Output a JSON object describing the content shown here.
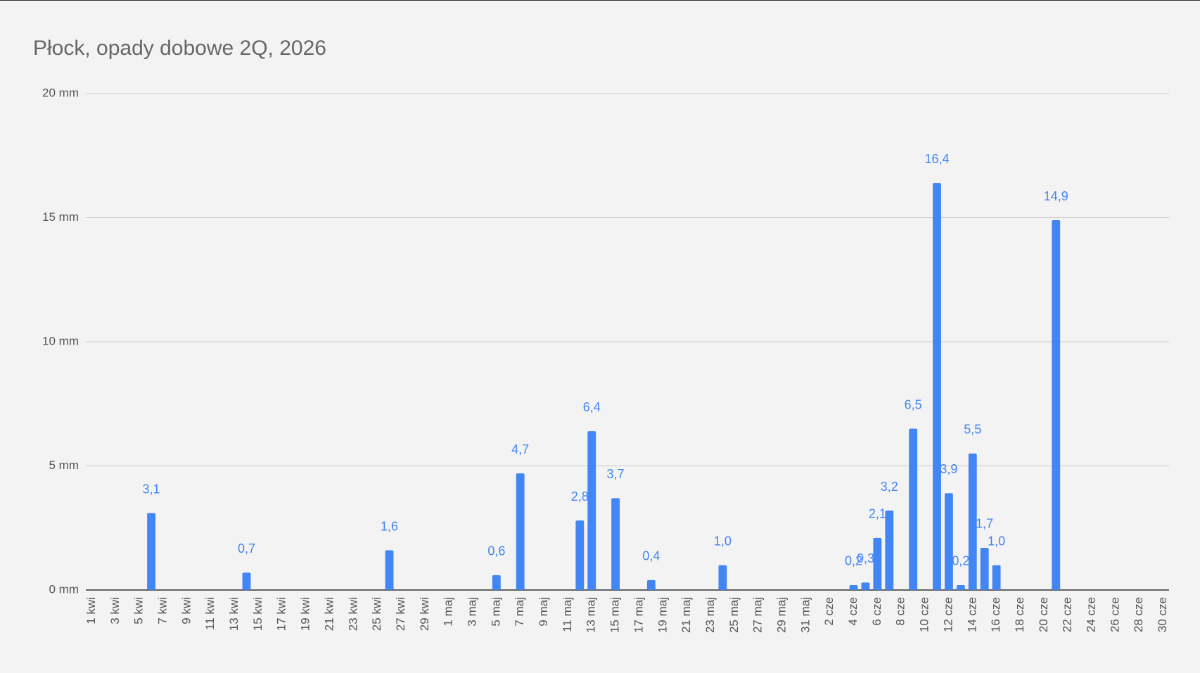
{
  "chart_data": {
    "type": "bar",
    "title": "Płock, opady dobowe 2Q, 2026",
    "categories": [
      "1 kwi",
      null,
      "3 kwi",
      null,
      "5 kwi",
      null,
      "7 kwi",
      null,
      "9 kwi",
      null,
      "11 kwi",
      null,
      "13 kwi",
      null,
      "15 kwi",
      null,
      "17 kwi",
      null,
      "19 kwi",
      null,
      "21 kwi",
      null,
      "23 kwi",
      null,
      "25 kwi",
      null,
      "27 kwi",
      null,
      "29 kwi",
      null,
      "1 maj",
      null,
      "3 maj",
      null,
      "5 maj",
      null,
      "7 maj",
      null,
      "9 maj",
      null,
      "11 maj",
      null,
      "13 maj",
      null,
      "15 maj",
      null,
      "17 maj",
      null,
      "19 maj",
      null,
      "21 maj",
      null,
      "23 maj",
      null,
      "25 maj",
      null,
      "27 maj",
      null,
      "29 maj",
      null,
      "31 maj",
      null,
      "2 cze",
      null,
      "4 cze",
      null,
      "6 cze",
      null,
      "8 cze",
      null,
      "10 cze",
      null,
      "12 cze",
      null,
      "14 cze",
      null,
      "16 cze",
      null,
      "18 cze",
      null,
      "20 cze",
      null,
      "22 cze",
      null,
      "24 cze",
      null,
      "26 cze",
      null,
      "28 cze",
      null,
      "30 cze"
    ],
    "values": [
      null,
      null,
      null,
      null,
      null,
      3.1,
      null,
      null,
      null,
      null,
      null,
      null,
      null,
      0.7,
      null,
      null,
      null,
      null,
      null,
      null,
      null,
      null,
      null,
      null,
      null,
      1.6,
      null,
      null,
      null,
      null,
      null,
      null,
      null,
      null,
      0.6,
      null,
      4.7,
      null,
      null,
      null,
      null,
      2.8,
      6.4,
      null,
      3.7,
      null,
      null,
      0.4,
      null,
      null,
      null,
      null,
      null,
      1.0,
      null,
      null,
      null,
      null,
      null,
      null,
      null,
      null,
      null,
      null,
      0.2,
      0.3,
      2.1,
      3.2,
      null,
      6.5,
      null,
      16.4,
      3.9,
      0.2,
      5.5,
      1.7,
      1.0,
      null,
      null,
      null,
      null,
      14.9,
      null,
      null,
      null,
      null,
      null,
      null,
      null,
      null,
      null
    ],
    "value_labels": [
      null,
      null,
      null,
      null,
      null,
      "3,1",
      null,
      null,
      null,
      null,
      null,
      null,
      null,
      "0,7",
      null,
      null,
      null,
      null,
      null,
      null,
      null,
      null,
      null,
      null,
      null,
      "1,6",
      null,
      null,
      null,
      null,
      null,
      null,
      null,
      null,
      "0,6",
      null,
      "4,7",
      null,
      null,
      null,
      null,
      "2,8",
      "6,4",
      null,
      "3,7",
      null,
      null,
      "0,4",
      null,
      null,
      null,
      null,
      null,
      "1,0",
      null,
      null,
      null,
      null,
      null,
      null,
      null,
      null,
      null,
      null,
      "0,2",
      "0,3",
      "2,1",
      "3,2",
      null,
      "6,5",
      null,
      "16,4",
      "3,9",
      "0,2",
      "5,5",
      "1,7",
      "1,0",
      null,
      null,
      null,
      null,
      "14,9",
      null,
      null,
      null,
      null,
      null,
      null,
      null,
      null,
      null
    ],
    "color": "#4285f4",
    "ylim": [
      0,
      20
    ],
    "yticks": [
      {
        "value": 0,
        "label": "0 mm"
      },
      {
        "value": 5,
        "label": "5 mm"
      },
      {
        "value": 10,
        "label": "10 mm"
      },
      {
        "value": 15,
        "label": "15 mm"
      },
      {
        "value": 20,
        "label": "20 mm"
      }
    ],
    "grid": true
  }
}
